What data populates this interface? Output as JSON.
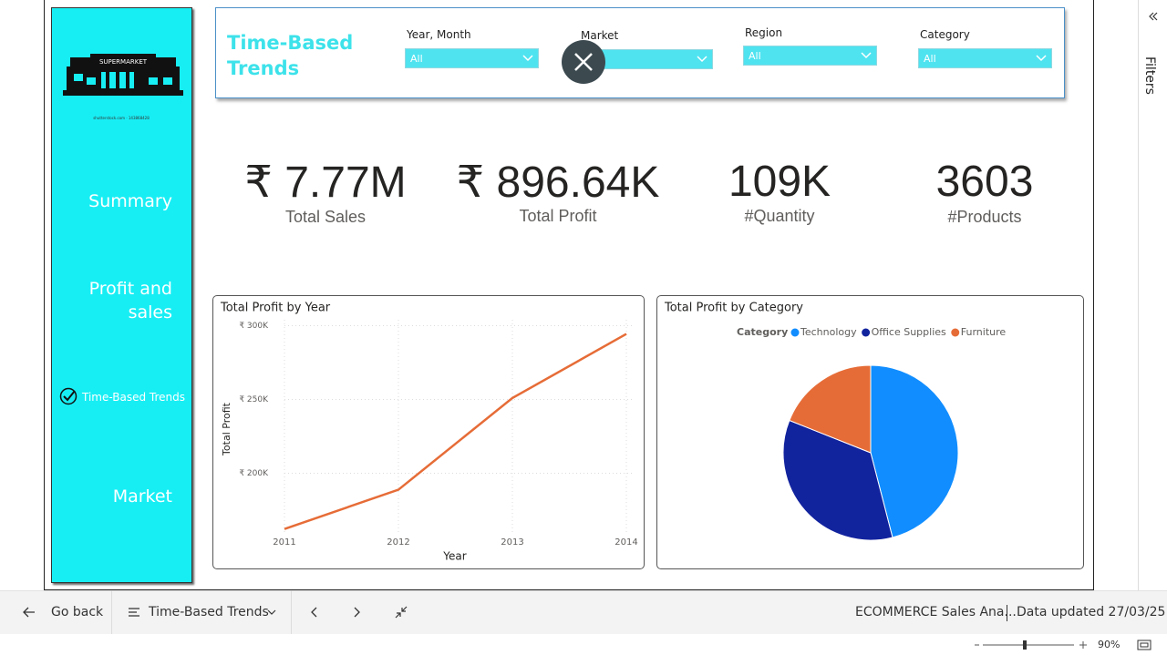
{
  "sidebar": {
    "logo_text": "SUPERMARKET",
    "credit": "shutterstock.com · 143868428",
    "nav": [
      "Summary",
      "Profit and sales",
      "Time-Based Trends",
      "Market"
    ]
  },
  "header": {
    "title": "Time-Based Trends",
    "filters": [
      {
        "label": "Year, Month",
        "value": "All"
      },
      {
        "label": "Market"
      },
      {
        "label": "Region",
        "value": "All"
      },
      {
        "label": "Category",
        "value": "All"
      }
    ]
  },
  "kpis": [
    {
      "value": "₹ 7.77M",
      "label": "Total Sales"
    },
    {
      "value": "₹ 896.64K",
      "label": "Total Profit"
    },
    {
      "value": "109K",
      "label": "#Quantity"
    },
    {
      "value": "3603",
      "label": "#Products"
    }
  ],
  "chart_data": [
    {
      "type": "line",
      "title": "Total Profit by Year",
      "x_label": "Year",
      "y_label": "Total Profit",
      "categories": [
        "2011",
        "2012",
        "2013",
        "2014"
      ],
      "values": [
        162300,
        188900,
        251000,
        294400
      ],
      "color": "#E66C37",
      "ylim": [
        159000,
        304000
      ],
      "yticks": [
        {
          "value": 200000,
          "label": "₹ 200K"
        },
        {
          "value": 250000,
          "label": "₹ 250K"
        },
        {
          "value": 300000,
          "label": "₹ 300K"
        }
      ],
      "grid": true
    },
    {
      "type": "pie",
      "title": "Total Profit by Category",
      "legend_title": "Category",
      "categories": [
        "Technology",
        "Office Supplies",
        "Furniture"
      ],
      "values": [
        412000,
        314000,
        170000
      ],
      "colors": [
        "#118DFF",
        "#12239E",
        "#E66C37"
      ]
    }
  ],
  "filters_pane": "Filters",
  "bottom_bar": {
    "back": "Go back",
    "page": "Time-Based Trends",
    "report": "ECOMMERCE Sales Ana...",
    "updated": "Data updated 27/03/25",
    "zoom": "90%"
  }
}
